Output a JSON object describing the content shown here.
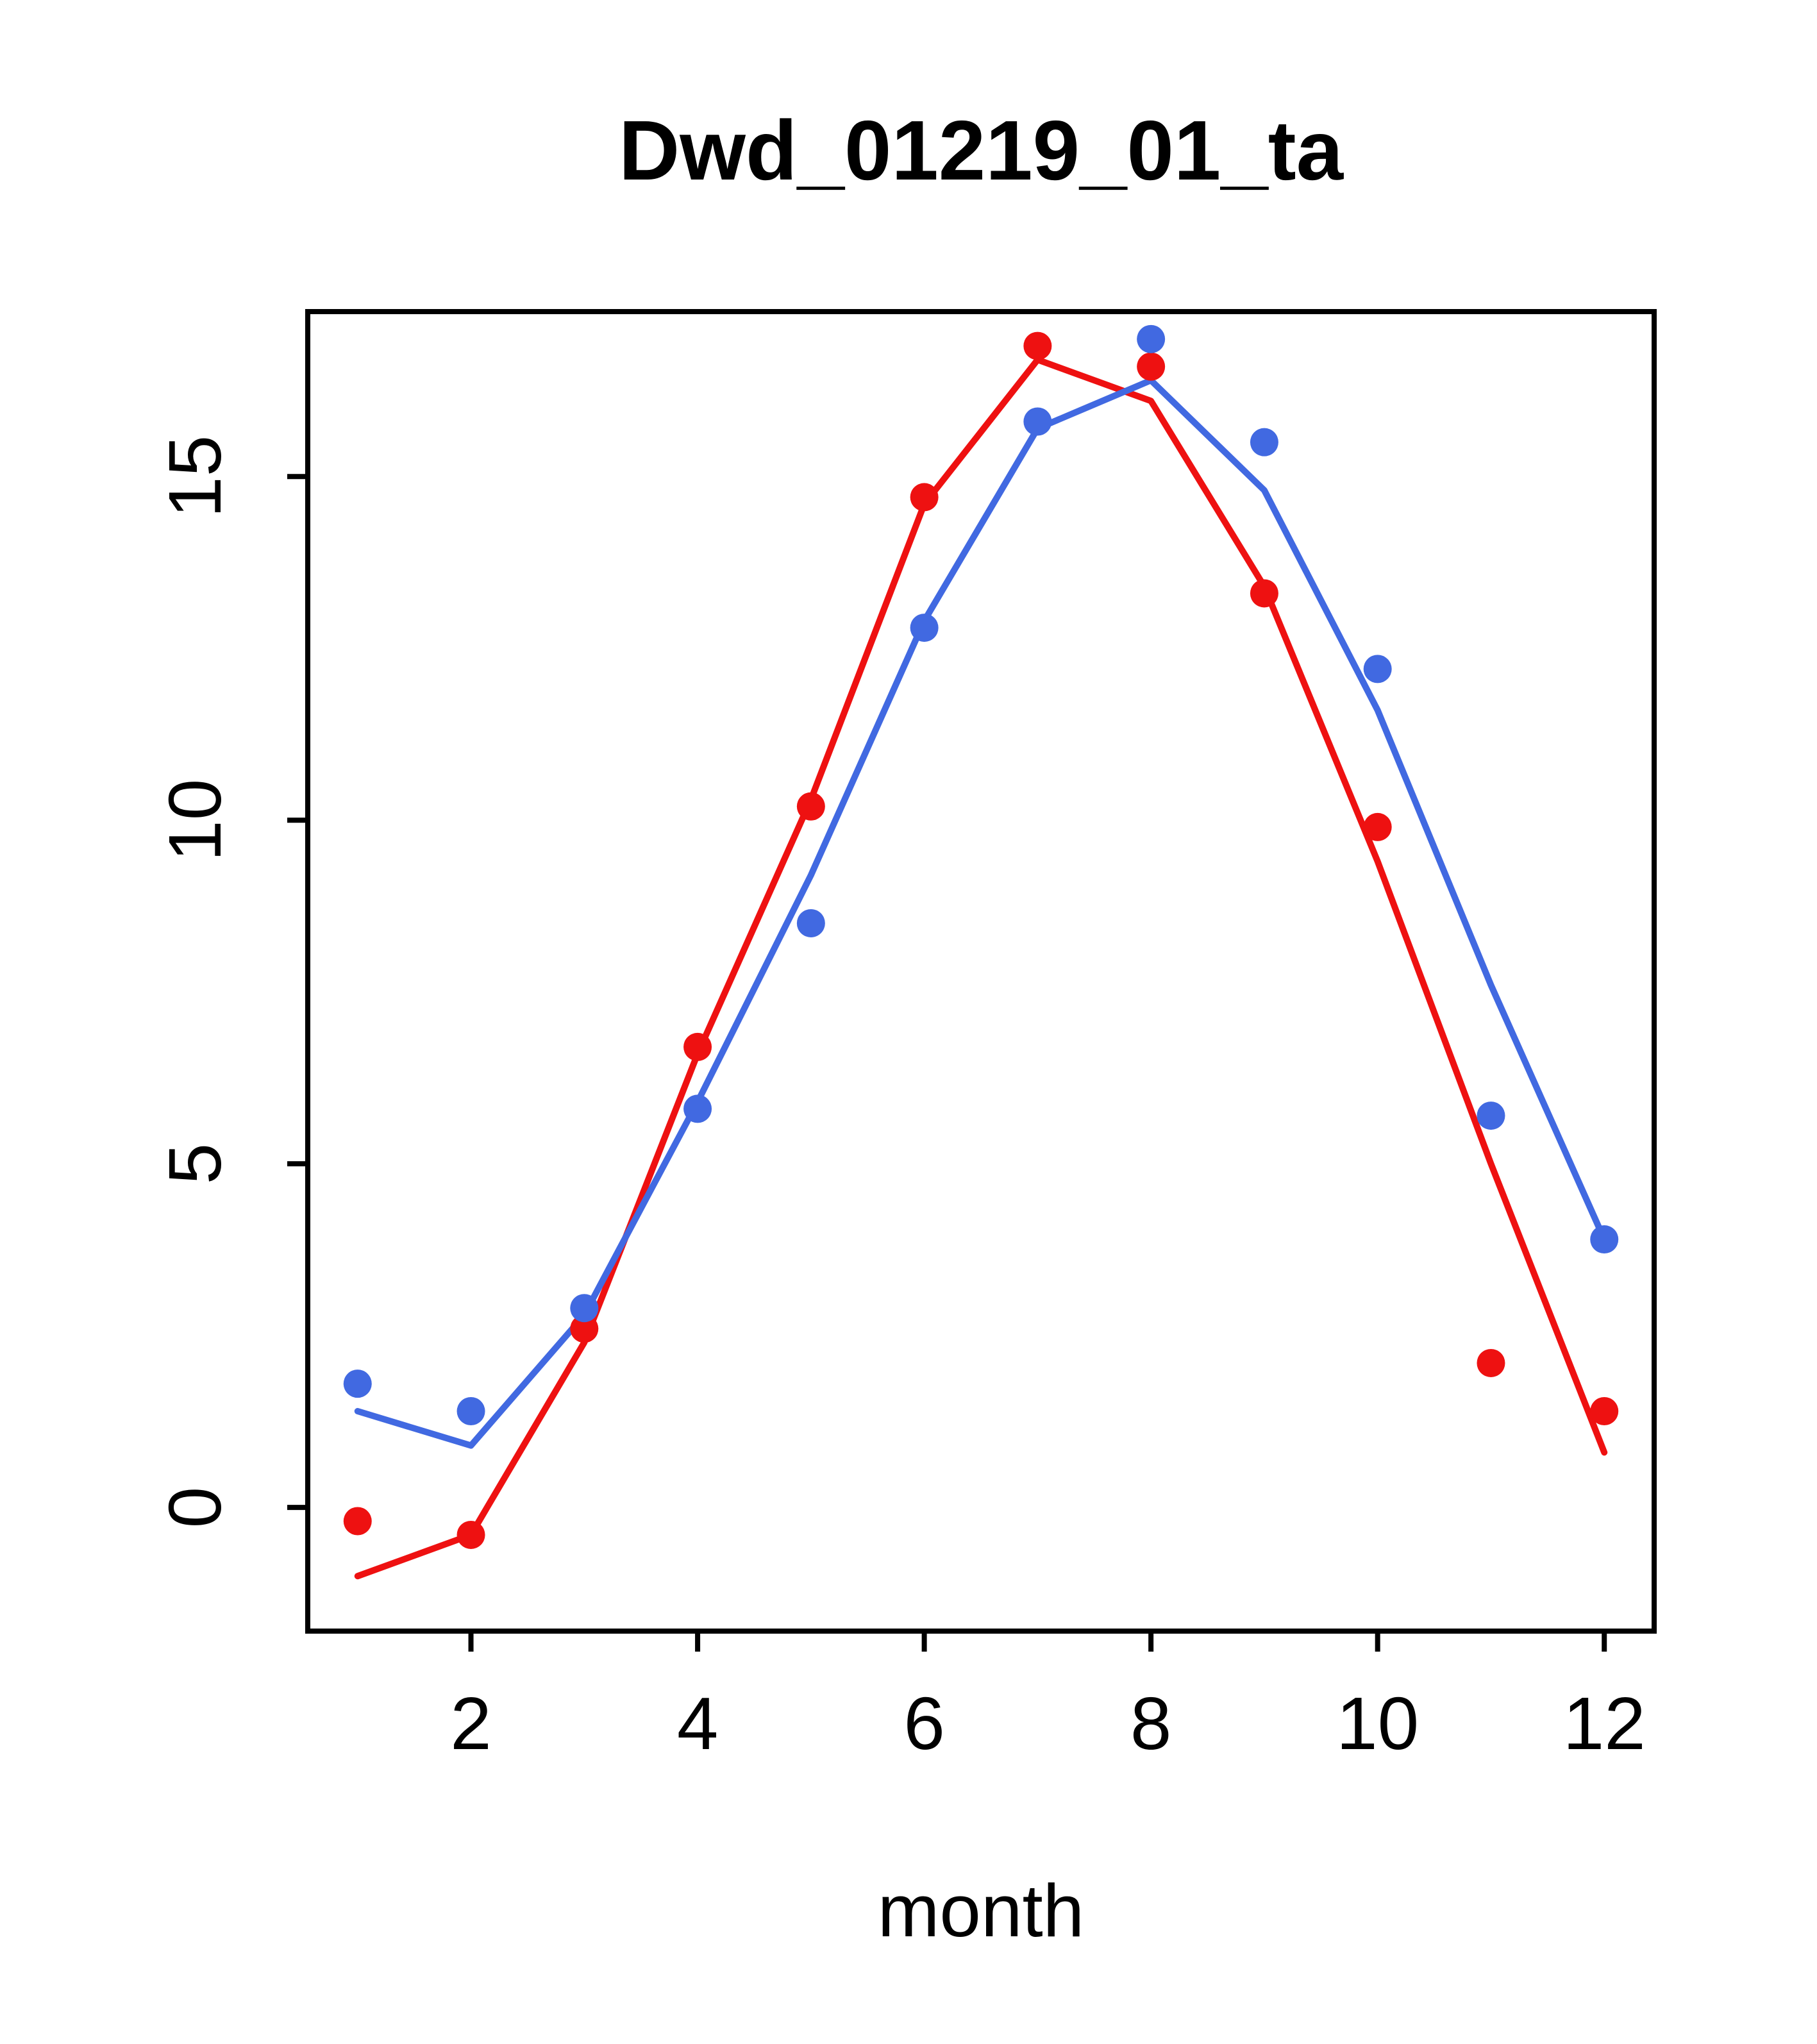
{
  "page": {
    "background": "#ffffff"
  },
  "chart_data": {
    "type": "line",
    "title": "Dwd_01219_01_ta",
    "xlabel": "month",
    "ylabel": "",
    "x": [
      1,
      2,
      3,
      4,
      5,
      6,
      7,
      8,
      9,
      10,
      11,
      12
    ],
    "xticks": [
      2,
      4,
      6,
      8,
      10,
      12
    ],
    "yticks": [
      0,
      5,
      10,
      15
    ],
    "xlim": [
      0.56,
      12.44
    ],
    "ylim": [
      -1.8,
      17.4
    ],
    "grid": false,
    "legend": "none",
    "series": [
      {
        "name": "red-series",
        "color": "#ee1111",
        "points": [
          -0.2,
          -0.4,
          2.6,
          6.7,
          10.2,
          14.7,
          16.9,
          16.6,
          13.3,
          9.9,
          2.1,
          1.4
        ],
        "line": [
          -1.0,
          -0.4,
          2.4,
          6.6,
          10.3,
          14.6,
          16.7,
          16.1,
          13.4,
          9.4,
          5.0,
          0.8
        ]
      },
      {
        "name": "blue-series",
        "color": "#4169e1",
        "points": [
          1.8,
          1.4,
          2.9,
          5.8,
          8.5,
          12.8,
          15.8,
          17.0,
          15.5,
          12.2,
          5.7,
          3.9
        ],
        "line": [
          1.4,
          0.9,
          2.8,
          5.9,
          9.2,
          12.9,
          15.7,
          16.4,
          14.8,
          11.6,
          7.6,
          3.9
        ]
      }
    ]
  }
}
